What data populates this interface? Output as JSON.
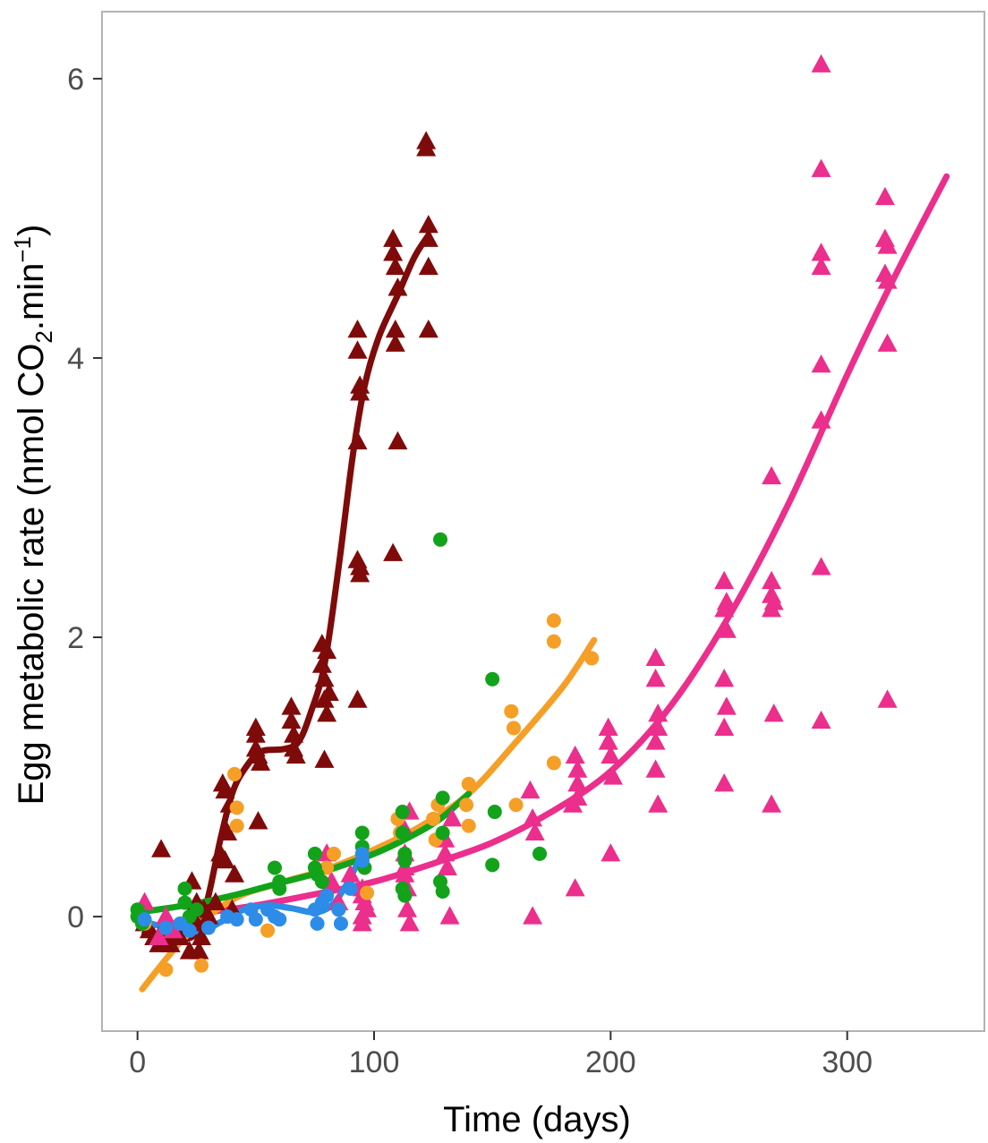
{
  "chart_data": {
    "type": "scatter",
    "xlabel": "Time (days)",
    "ylabel": {
      "prefix": "Egg metabolic rate (nmol CO",
      "subscript": "2",
      "middle": ".min",
      "superscript": "−1",
      "suffix": ")"
    },
    "xlim": [
      -15,
      358
    ],
    "ylim": [
      -0.82,
      6.48
    ],
    "x_ticks": [
      0,
      100,
      200,
      300
    ],
    "y_ticks": [
      0,
      2,
      4,
      6
    ],
    "grid": false,
    "legend": "none",
    "series": [
      {
        "marker": "triangle",
        "color": "#7f0a0a",
        "points": [
          [
            3,
            -0.05
          ],
          [
            5,
            -0.1
          ],
          [
            7,
            -0.15
          ],
          [
            9,
            -0.2
          ],
          [
            10,
            0.48
          ],
          [
            12,
            -0.05
          ],
          [
            14,
            -0.2
          ],
          [
            16,
            -0.1
          ],
          [
            18,
            -0.15
          ],
          [
            22,
            -0.25
          ],
          [
            23,
            0.25
          ],
          [
            25,
            -0.05
          ],
          [
            25,
            0.1
          ],
          [
            26,
            -0.25
          ],
          [
            27,
            -0.15
          ],
          [
            28,
            0.05
          ],
          [
            30,
            0.0
          ],
          [
            33,
            0.1
          ],
          [
            35,
            0.45
          ],
          [
            36,
            0.95
          ],
          [
            37,
            0.9
          ],
          [
            37,
            0.4
          ],
          [
            38,
            0.6
          ],
          [
            39,
            0.8
          ],
          [
            40,
            0.05
          ],
          [
            41,
            0.3
          ],
          [
            50,
            1.35
          ],
          [
            50,
            1.3
          ],
          [
            50,
            1.2
          ],
          [
            51,
            1.15
          ],
          [
            51,
            0.68
          ],
          [
            52,
            1.1
          ],
          [
            65,
            1.5
          ],
          [
            65,
            1.4
          ],
          [
            66,
            1.3
          ],
          [
            66,
            1.2
          ],
          [
            67,
            1.15
          ],
          [
            78,
            1.95
          ],
          [
            78,
            1.8
          ],
          [
            79,
            1.7
          ],
          [
            79,
            1.55
          ],
          [
            80,
            1.45
          ],
          [
            80,
            1.9
          ],
          [
            81,
            1.6
          ],
          [
            79,
            1.12
          ],
          [
            93,
            4.2
          ],
          [
            93,
            4.05
          ],
          [
            94,
            3.8
          ],
          [
            94,
            3.75
          ],
          [
            93,
            3.4
          ],
          [
            94,
            2.5
          ],
          [
            94,
            2.45
          ],
          [
            93,
            2.55
          ],
          [
            93,
            1.55
          ],
          [
            108,
            4.85
          ],
          [
            108,
            4.75
          ],
          [
            109,
            4.65
          ],
          [
            110,
            4.5
          ],
          [
            109,
            4.2
          ],
          [
            109,
            4.1
          ],
          [
            110,
            3.4
          ],
          [
            108,
            2.6
          ],
          [
            122,
            5.55
          ],
          [
            122,
            5.5
          ],
          [
            123,
            4.95
          ],
          [
            123,
            4.85
          ],
          [
            123,
            4.65
          ],
          [
            123,
            4.2
          ]
        ],
        "trend": [
          [
            3,
            -0.12
          ],
          [
            15,
            -0.16
          ],
          [
            25,
            -0.12
          ],
          [
            30,
            0.15
          ],
          [
            35,
            0.55
          ],
          [
            40,
            0.88
          ],
          [
            45,
            1.05
          ],
          [
            52,
            1.18
          ],
          [
            62,
            1.2
          ],
          [
            68,
            1.25
          ],
          [
            73,
            1.45
          ],
          [
            79,
            1.8
          ],
          [
            85,
            2.5
          ],
          [
            91,
            3.3
          ],
          [
            96,
            3.8
          ],
          [
            102,
            4.15
          ],
          [
            110,
            4.45
          ],
          [
            117,
            4.72
          ],
          [
            123,
            4.88
          ]
        ]
      },
      {
        "marker": "triangle",
        "color": "#ec2e8c",
        "points": [
          [
            3,
            0.1
          ],
          [
            9,
            -0.15
          ],
          [
            12,
            0.0
          ],
          [
            15,
            -0.1
          ],
          [
            80,
            0.45
          ],
          [
            82,
            0.25
          ],
          [
            85,
            0.1
          ],
          [
            90,
            0.3
          ],
          [
            95,
            0.2
          ],
          [
            95,
            0.15
          ],
          [
            95,
            0.0
          ],
          [
            95,
            -0.05
          ],
          [
            96,
            0.1
          ],
          [
            97,
            0.05
          ],
          [
            113,
            0.3
          ],
          [
            113,
            0.35
          ],
          [
            113,
            0.45
          ],
          [
            114,
            0.2
          ],
          [
            114,
            0.05
          ],
          [
            115,
            -0.05
          ],
          [
            115,
            0.75
          ],
          [
            112,
            0.65
          ],
          [
            130,
            0.55
          ],
          [
            130,
            0.45
          ],
          [
            131,
            0.35
          ],
          [
            132,
            0.0
          ],
          [
            133,
            0.7
          ],
          [
            166,
            0.9
          ],
          [
            167,
            0.7
          ],
          [
            168,
            0.6
          ],
          [
            167,
            0.0
          ],
          [
            185,
            1.15
          ],
          [
            186,
            1.05
          ],
          [
            186,
            0.95
          ],
          [
            186,
            0.85
          ],
          [
            184,
            0.8
          ],
          [
            185,
            0.2
          ],
          [
            199,
            1.35
          ],
          [
            199,
            1.25
          ],
          [
            200,
            1.15
          ],
          [
            201,
            1.0
          ],
          [
            200,
            0.45
          ],
          [
            219,
            1.85
          ],
          [
            219,
            1.7
          ],
          [
            220,
            1.45
          ],
          [
            220,
            1.35
          ],
          [
            219,
            1.25
          ],
          [
            219,
            1.05
          ],
          [
            220,
            0.8
          ],
          [
            248,
            2.4
          ],
          [
            249,
            2.25
          ],
          [
            248,
            2.2
          ],
          [
            249,
            2.05
          ],
          [
            248,
            1.7
          ],
          [
            249,
            1.5
          ],
          [
            248,
            1.35
          ],
          [
            248,
            0.95
          ],
          [
            268,
            3.15
          ],
          [
            268,
            2.4
          ],
          [
            268,
            2.3
          ],
          [
            269,
            2.25
          ],
          [
            268,
            2.2
          ],
          [
            269,
            1.45
          ],
          [
            268,
            0.8
          ],
          [
            289,
            6.1
          ],
          [
            289,
            5.35
          ],
          [
            289,
            4.75
          ],
          [
            289,
            4.65
          ],
          [
            289,
            3.95
          ],
          [
            289,
            3.55
          ],
          [
            289,
            2.5
          ],
          [
            289,
            1.4
          ],
          [
            316,
            5.15
          ],
          [
            316,
            4.85
          ],
          [
            317,
            4.8
          ],
          [
            316,
            4.6
          ],
          [
            317,
            4.55
          ],
          [
            317,
            4.1
          ],
          [
            317,
            1.55
          ]
        ],
        "trend": [
          [
            25,
            0.02
          ],
          [
            50,
            0.08
          ],
          [
            75,
            0.16
          ],
          [
            100,
            0.25
          ],
          [
            125,
            0.38
          ],
          [
            150,
            0.53
          ],
          [
            175,
            0.75
          ],
          [
            200,
            1.04
          ],
          [
            225,
            1.5
          ],
          [
            250,
            2.15
          ],
          [
            275,
            2.95
          ],
          [
            300,
            3.88
          ],
          [
            320,
            4.58
          ],
          [
            342,
            5.3
          ]
        ]
      },
      {
        "marker": "circle",
        "color": "#f59f27",
        "points": [
          [
            3,
            -0.05
          ],
          [
            12,
            -0.38
          ],
          [
            27,
            -0.35
          ],
          [
            41,
            1.02
          ],
          [
            42,
            0.78
          ],
          [
            42,
            0.65
          ],
          [
            55,
            -0.1
          ],
          [
            80,
            0.35
          ],
          [
            83,
            0.45
          ],
          [
            85,
            0.05
          ],
          [
            97,
            0.17
          ],
          [
            110,
            0.7
          ],
          [
            111,
            0.6
          ],
          [
            125,
            0.7
          ],
          [
            126,
            0.55
          ],
          [
            127,
            0.8
          ],
          [
            140,
            0.95
          ],
          [
            140,
            0.65
          ],
          [
            139,
            0.8
          ],
          [
            158,
            1.47
          ],
          [
            159,
            1.35
          ],
          [
            160,
            0.8
          ],
          [
            176,
            2.12
          ],
          [
            176,
            1.97
          ],
          [
            176,
            1.1
          ],
          [
            192,
            1.85
          ]
        ],
        "trend": [
          [
            2,
            -0.52
          ],
          [
            20,
            -0.15
          ],
          [
            40,
            0.12
          ],
          [
            60,
            0.24
          ],
          [
            80,
            0.34
          ],
          [
            100,
            0.48
          ],
          [
            120,
            0.65
          ],
          [
            140,
            0.88
          ],
          [
            160,
            1.25
          ],
          [
            180,
            1.65
          ],
          [
            193,
            1.98
          ]
        ]
      },
      {
        "marker": "circle",
        "color": "#12a31a",
        "points": [
          [
            0,
            0.05
          ],
          [
            0,
            0.0
          ],
          [
            2,
            -0.05
          ],
          [
            20,
            0.2
          ],
          [
            20,
            0.1
          ],
          [
            22,
            0.0
          ],
          [
            25,
            0.05
          ],
          [
            58,
            0.35
          ],
          [
            60,
            0.25
          ],
          [
            60,
            0.2
          ],
          [
            75,
            0.45
          ],
          [
            75,
            0.35
          ],
          [
            76,
            0.3
          ],
          [
            78,
            0.25
          ],
          [
            95,
            0.6
          ],
          [
            95,
            0.5
          ],
          [
            95,
            0.4
          ],
          [
            96,
            0.35
          ],
          [
            112,
            0.75
          ],
          [
            112,
            0.6
          ],
          [
            113,
            0.45
          ],
          [
            113,
            0.4
          ],
          [
            112,
            0.2
          ],
          [
            113,
            0.15
          ],
          [
            128,
            2.7
          ],
          [
            129,
            0.85
          ],
          [
            129,
            0.6
          ],
          [
            128,
            0.25
          ],
          [
            129,
            0.18
          ],
          [
            150,
            1.7
          ],
          [
            151,
            0.75
          ],
          [
            150,
            0.37
          ],
          [
            170,
            0.45
          ]
        ],
        "trend": [
          [
            0,
            0.03
          ],
          [
            20,
            0.08
          ],
          [
            40,
            0.15
          ],
          [
            60,
            0.24
          ],
          [
            80,
            0.33
          ],
          [
            100,
            0.45
          ],
          [
            115,
            0.57
          ],
          [
            128,
            0.7
          ],
          [
            140,
            0.88
          ]
        ]
      },
      {
        "marker": "circle",
        "color": "#2c8ce8",
        "points": [
          [
            3,
            -0.02
          ],
          [
            12,
            -0.08
          ],
          [
            18,
            -0.05
          ],
          [
            22,
            -0.1
          ],
          [
            30,
            -0.08
          ],
          [
            38,
            0.0
          ],
          [
            42,
            -0.02
          ],
          [
            48,
            0.05
          ],
          [
            50,
            -0.02
          ],
          [
            55,
            0.05
          ],
          [
            58,
            0.0
          ],
          [
            60,
            -0.02
          ],
          [
            75,
            0.05
          ],
          [
            76,
            -0.05
          ],
          [
            78,
            0.1
          ],
          [
            80,
            0.15
          ],
          [
            85,
            0.05
          ],
          [
            86,
            -0.05
          ],
          [
            90,
            0.2
          ],
          [
            95,
            0.4
          ],
          [
            95,
            0.45
          ]
        ],
        "trend": [
          [
            2,
            -0.03
          ],
          [
            10,
            -0.07
          ],
          [
            20,
            -0.1
          ],
          [
            28,
            -0.1
          ],
          [
            35,
            -0.04
          ],
          [
            45,
            0.05
          ],
          [
            55,
            0.08
          ],
          [
            65,
            0.06
          ],
          [
            75,
            0.03
          ],
          [
            82,
            0.08
          ],
          [
            88,
            0.22
          ],
          [
            96,
            0.48
          ]
        ]
      }
    ]
  }
}
